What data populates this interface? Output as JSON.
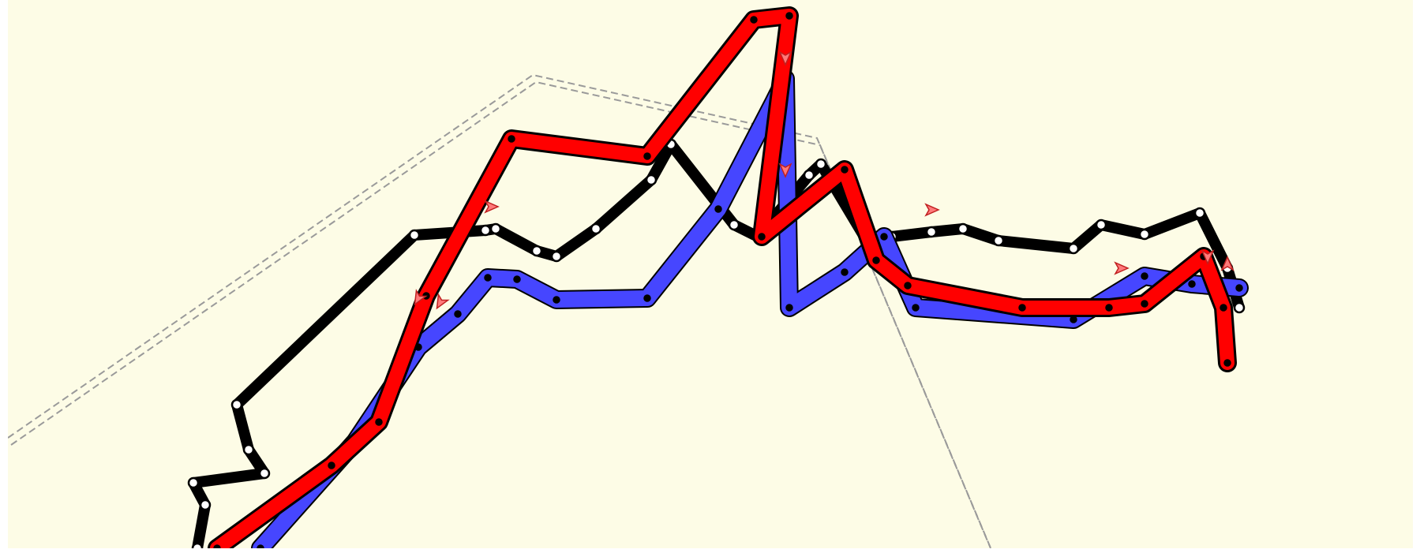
{
  "canvas": {
    "background_color": "#fdfce6",
    "page_background_color": "#ffffff"
  },
  "colors": {
    "outline": "#000000",
    "route_red": "#ff0000",
    "route_blue": "#4646ff",
    "route_black": "#000000",
    "node_fill_dark": "#000000",
    "node_fill_light": "#ffffff",
    "boundary_line": "#9a9a9a",
    "arrow_fill": "#ff7a7a"
  },
  "elements": {
    "boundary": {
      "style": "double-dashed",
      "icon": "boundary-line"
    },
    "routes": [
      {
        "name": "black-route",
        "color_key": "route_black",
        "node_style": "white-dot"
      },
      {
        "name": "blue-route",
        "color_key": "route_blue",
        "node_style": "black-dot"
      },
      {
        "name": "red-route",
        "color_key": "route_red",
        "node_style": "black-dot"
      }
    ],
    "direction_markers": {
      "icon": "direction-arrow-icon",
      "count": 9
    }
  }
}
